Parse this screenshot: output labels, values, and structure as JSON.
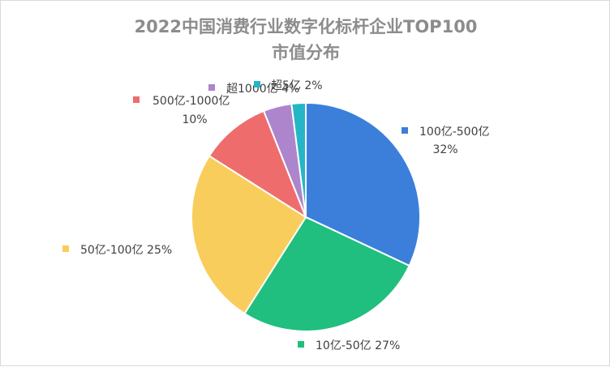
{
  "chart_data": {
    "type": "pie",
    "title_lines": [
      "2022中国消费行业数字化标杆企业TOP100",
      "市值分布"
    ],
    "slices": [
      {
        "label": "100亿-500亿",
        "value": 32,
        "pct_label": "32%",
        "color": "#3b7fdb"
      },
      {
        "label": "10亿-50亿",
        "value": 27,
        "pct_label": "27%",
        "color": "#20bf7f"
      },
      {
        "label": "50亿-100亿",
        "value": 25,
        "pct_label": "25%",
        "color": "#f9cd5b"
      },
      {
        "label": "500亿-1000亿",
        "value": 10,
        "pct_label": "10%",
        "color": "#ee6d6c"
      },
      {
        "label": "超1000亿",
        "value": 4,
        "pct_label": "4%",
        "color": "#ac85cd"
      },
      {
        "label": "超5亿",
        "value": 2,
        "pct_label": "2%",
        "color": "#24b6c6"
      }
    ],
    "legend": "none",
    "start_angle": "12 o'clock",
    "direction": "clockwise"
  }
}
